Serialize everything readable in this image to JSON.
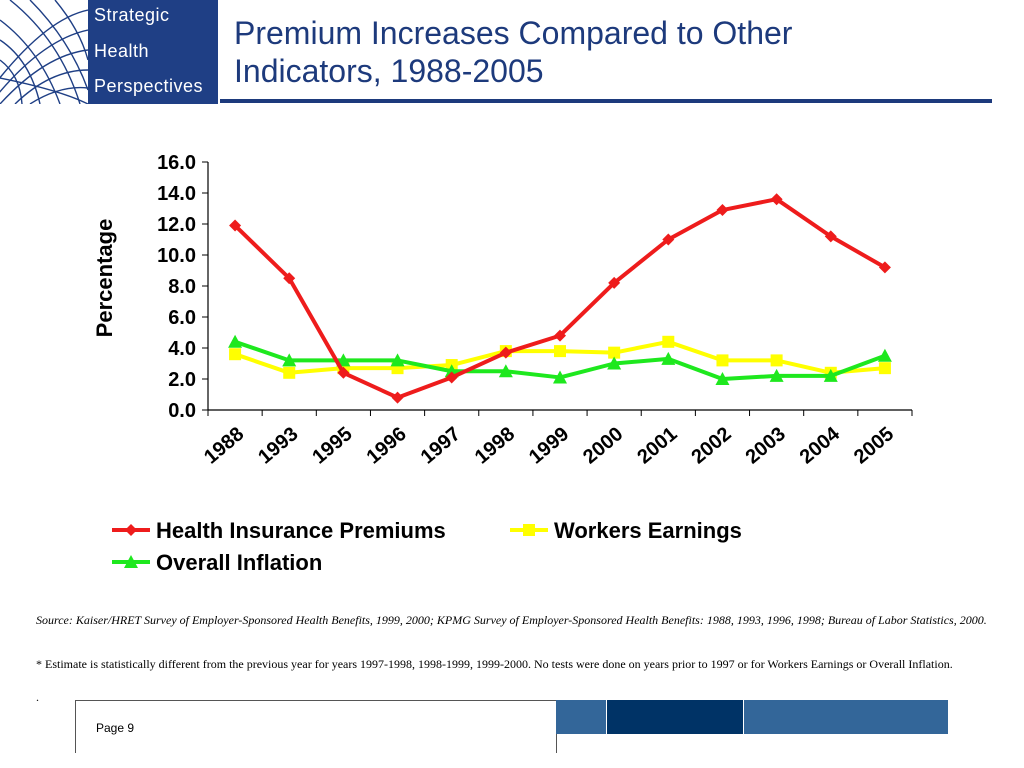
{
  "logo": {
    "lines": [
      "Strategic",
      "Health",
      "Perspectives"
    ],
    "colors": {
      "panel": "#1f3f85",
      "globe": "#1f3f85"
    }
  },
  "slide": {
    "title_line1": "Premium Increases Compared to Other",
    "title_line2": "Indicators, 1988-2005",
    "source": "Source: Kaiser/HRET Survey of Employer-Sponsored Health Benefits, 1999, 2000; KPMG Survey of Employer-Sponsored Health Benefits: 1988, 1993, 1996, 1998; Bureau of Labor Statistics, 2000.",
    "note": "* Estimate is statistically different from the previous year for years 1997-1998, 1998-1999, 1999-2000.  No tests were done on years prior to 1997 or for Workers Earnings or Overall Inflation.",
    "dot": ".",
    "page_label": "Page 9"
  },
  "chart_data": {
    "type": "line",
    "title": "",
    "xlabel": "",
    "ylabel": "Percentage",
    "ylim": [
      0,
      16
    ],
    "yticks": [
      "0.0",
      "2.0",
      "4.0",
      "6.0",
      "8.0",
      "10.0",
      "12.0",
      "14.0",
      "16.0"
    ],
    "categories": [
      "1988",
      "1993",
      "1995",
      "1996",
      "1997",
      "1998",
      "1999",
      "2000",
      "2001",
      "2002",
      "2003",
      "2004",
      "2005"
    ],
    "grid": false,
    "legend_position": "bottom",
    "series": [
      {
        "name": "Health Insurance Premiums",
        "color": "#ee1c1c",
        "marker": "diamond",
        "values": [
          11.9,
          8.5,
          2.4,
          0.8,
          2.1,
          3.7,
          4.8,
          8.2,
          11.0,
          12.9,
          13.6,
          11.2,
          9.2
        ]
      },
      {
        "name": "Workers Earnings",
        "color": "#ffff00",
        "marker": "square",
        "values": [
          3.6,
          2.4,
          2.7,
          2.7,
          2.9,
          3.8,
          3.8,
          3.7,
          4.4,
          3.2,
          3.2,
          2.4,
          2.7
        ]
      },
      {
        "name": "Overall Inflation",
        "color": "#1ee81e",
        "marker": "triangle",
        "values": [
          4.4,
          3.2,
          3.2,
          3.2,
          2.5,
          2.5,
          2.1,
          3.0,
          3.3,
          2.0,
          2.2,
          2.2,
          3.5
        ]
      }
    ]
  }
}
